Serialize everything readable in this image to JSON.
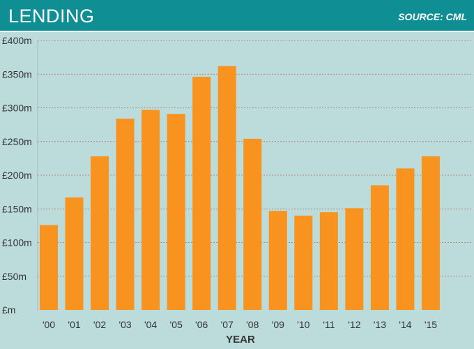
{
  "header": {
    "title": "LENDING",
    "source": "SOURCE: CML"
  },
  "colors": {
    "header_bg": "#0f8f93",
    "plot_bg": "#bcdbdb",
    "bar": "#f7931e",
    "grid": "#c0695f",
    "text": "#333333"
  },
  "chart_data": {
    "type": "bar",
    "title": "LENDING",
    "source": "SOURCE: CML",
    "xlabel": "YEAR",
    "ylabel": "",
    "categories": [
      "'00",
      "'01",
      "'02",
      "'03",
      "'04",
      "'05",
      "'06",
      "'07",
      "'08",
      "'09",
      "'10",
      "'11",
      "'12",
      "'13",
      "'14",
      "'15"
    ],
    "values": [
      126,
      167,
      228,
      284,
      297,
      291,
      346,
      362,
      254,
      147,
      140,
      145,
      151,
      185,
      210,
      228
    ],
    "ylim": [
      0,
      400
    ],
    "yticks": [
      0,
      50,
      100,
      150,
      200,
      250,
      300,
      350,
      400
    ],
    "ytick_labels": [
      "£m",
      "£50m",
      "£100m",
      "£150m",
      "£200m",
      "£250m",
      "£300m",
      "£350m",
      "£400m"
    ],
    "grid": true,
    "legend": "none"
  }
}
